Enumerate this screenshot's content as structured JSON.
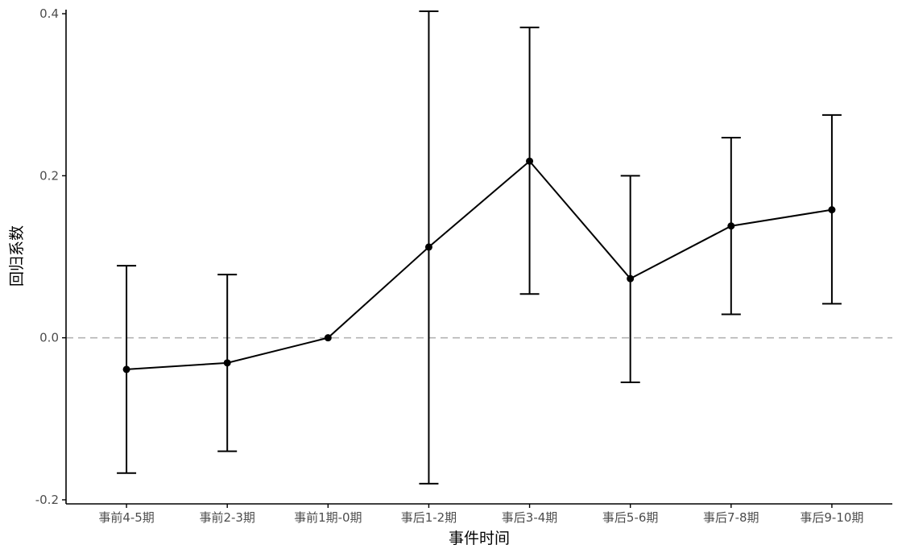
{
  "chart_data": {
    "type": "line",
    "title": "",
    "xlabel": "事件时间",
    "ylabel": "回归系数",
    "categories": [
      "事前4-5期",
      "事前2-3期",
      "事前1期-0期",
      "事后1-2期",
      "事后3-4期",
      "事后5-6期",
      "事后7-8期",
      "事后9-10期"
    ],
    "series": [
      {
        "values": [
          -0.039,
          -0.031,
          0.0,
          0.112,
          0.218,
          0.073,
          0.138,
          0.158
        ],
        "ci_lower": [
          -0.167,
          -0.14,
          0.0,
          -0.18,
          0.054,
          -0.055,
          0.029,
          0.042
        ],
        "ci_upper": [
          0.089,
          0.078,
          0.0,
          0.403,
          0.383,
          0.2,
          0.247,
          0.275
        ]
      }
    ],
    "yticks": [
      "-0.2",
      "0.0",
      "0.2",
      "0.4"
    ],
    "ytick_values": [
      -0.2,
      0.0,
      0.2,
      0.4
    ],
    "ylim": [
      -0.205,
      0.405
    ],
    "reference_line": 0.0,
    "colors": {
      "line": "#000000",
      "reference": "#b3b3b3"
    },
    "grid": false
  }
}
